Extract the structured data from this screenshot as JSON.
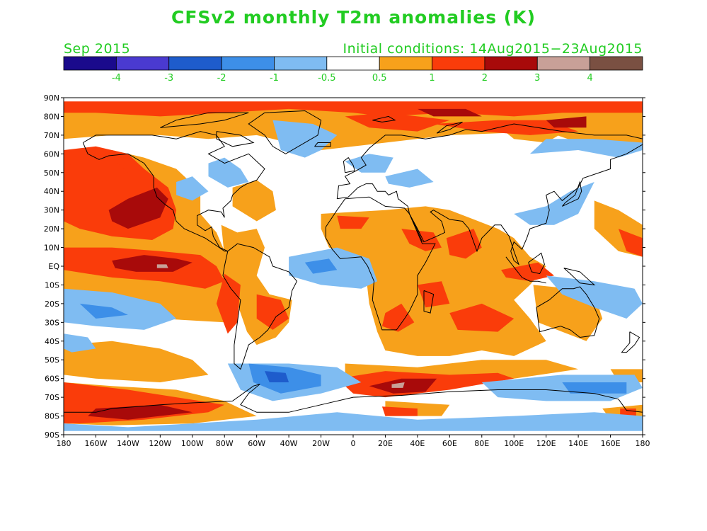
{
  "title": "CFSv2 monthly T2m anomalies (K)",
  "period": "Sep 2015",
  "initial_conditions": "Initial conditions: 14Aug2015−23Aug2015",
  "colorbar": {
    "colors": [
      "#1a0a8c",
      "#4a3ad0",
      "#1e5ccc",
      "#3d8fe8",
      "#7fbcf2",
      "#ffffff",
      "#f7a11b",
      "#fa3c0a",
      "#a80a0a",
      "#c8a098",
      "#7a5042"
    ],
    "labels": [
      "-4",
      "-3",
      "-2",
      "-1",
      "-0.5",
      "0.5",
      "1",
      "2",
      "3",
      "4"
    ]
  },
  "map": {
    "lat_labels": [
      "90N",
      "80N",
      "70N",
      "60N",
      "50N",
      "40N",
      "30N",
      "20N",
      "10N",
      "EQ",
      "10S",
      "20S",
      "30S",
      "40S",
      "50S",
      "60S",
      "70S",
      "80S",
      "90S"
    ],
    "lon_labels": [
      "180",
      "160W",
      "140W",
      "120W",
      "100W",
      "80W",
      "60W",
      "40W",
      "20W",
      "0",
      "20E",
      "40E",
      "60E",
      "80E",
      "100E",
      "120E",
      "140E",
      "160E",
      "180"
    ],
    "colors": {
      "orange": "#f7a11b",
      "red": "#fa3c0a",
      "dark_red": "#a80a0a",
      "pink": "#c8a098",
      "light_blue": "#7fbcf2",
      "blue": "#3d8fe8",
      "mid_blue": "#1e5ccc",
      "coast": "#000000"
    }
  }
}
